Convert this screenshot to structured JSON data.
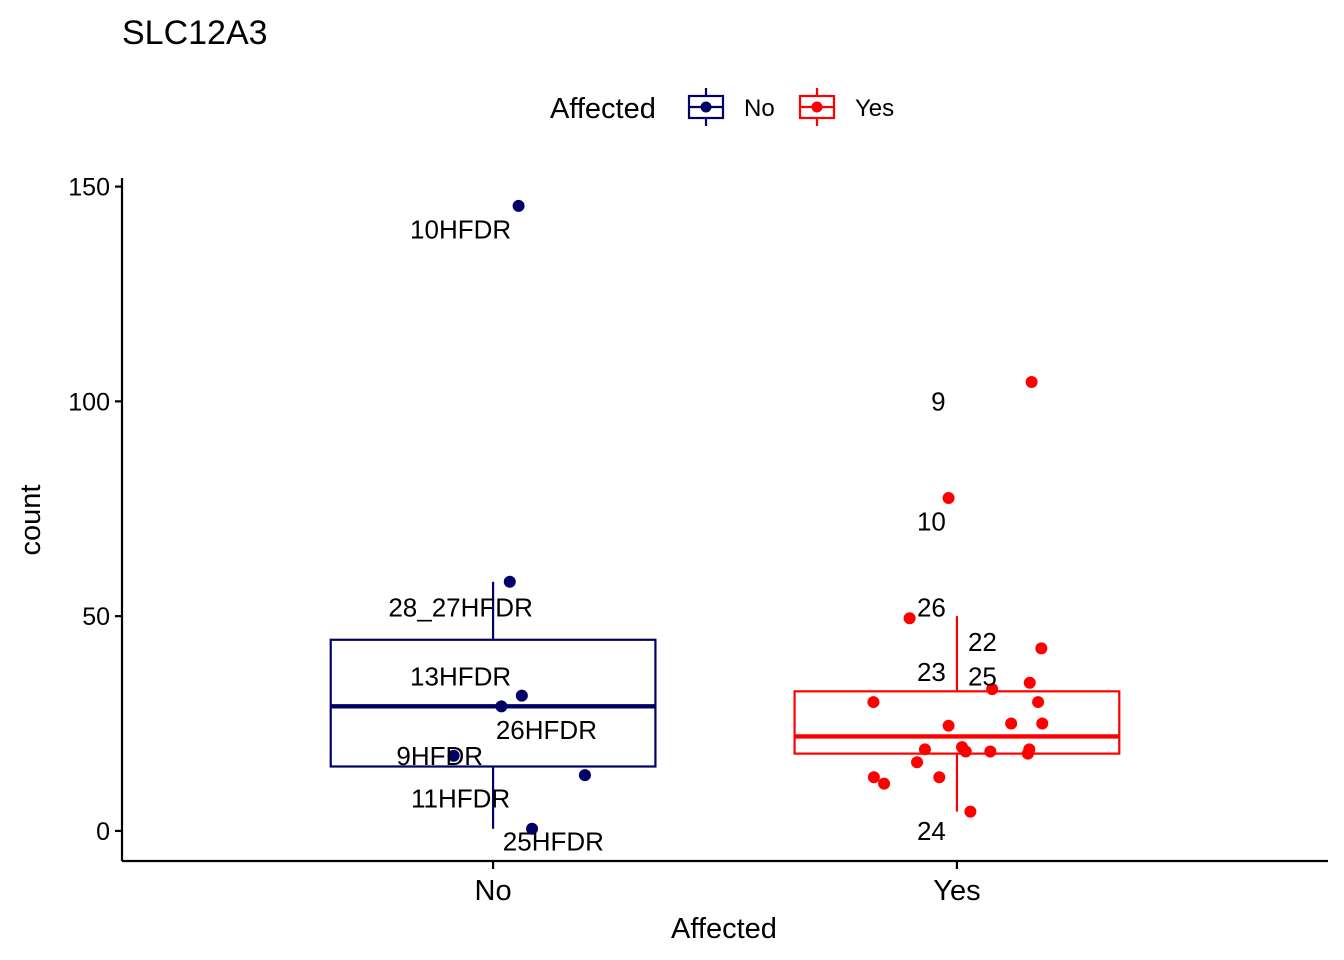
{
  "chart_data": {
    "type": "boxplot",
    "title": "SLC12A3",
    "xlabel": "Affected",
    "ylabel": "count",
    "ylim": [
      -7,
      152
    ],
    "yticks": [
      0,
      50,
      100,
      150
    ],
    "categories": [
      "No",
      "Yes"
    ],
    "legend": {
      "title": "Affected",
      "position": "top",
      "entries": [
        {
          "label": "No",
          "color": "#000066"
        },
        {
          "label": "Yes",
          "color": "#ff0000"
        }
      ]
    },
    "series": [
      {
        "name": "No",
        "color": "#000066",
        "box": {
          "q1": 15,
          "median": 29,
          "q3": 44.5,
          "whisker_low": 0.5,
          "whisker_high": 58
        },
        "points": [
          {
            "jitter": 0.055,
            "y": 145.5
          },
          {
            "jitter": 0.036,
            "y": 58
          },
          {
            "jitter": 0.062,
            "y": 31.5
          },
          {
            "jitter": 0.018,
            "y": 29
          },
          {
            "jitter": -0.085,
            "y": 17.5
          },
          {
            "jitter": 0.198,
            "y": 13
          },
          {
            "jitter": 0.084,
            "y": 0.5
          }
        ],
        "labels": [
          {
            "text": "10HFDR",
            "x_offset": -0.07,
            "y": 140
          },
          {
            "text": "28_27HFDR",
            "x_offset": -0.07,
            "y": 52
          },
          {
            "text": "13HFDR",
            "x_offset": -0.07,
            "y": 36
          },
          {
            "text": "26HFDR",
            "x_offset": 0.115,
            "y": 23.5
          },
          {
            "text": "9HFDR",
            "x_offset": -0.115,
            "y": 17.5
          },
          {
            "text": "11HFDR",
            "x_offset": -0.07,
            "y": 7.5
          },
          {
            "text": "25HFDR",
            "x_offset": 0.13,
            "y": -2.5
          }
        ]
      },
      {
        "name": "Yes",
        "color": "#ff0000",
        "box": {
          "q1": 18,
          "median": 22,
          "q3": 32.5,
          "whisker_low": 4.5,
          "whisker_high": 50
        },
        "points": [
          {
            "jitter": 0.161,
            "y": 104.5
          },
          {
            "jitter": -0.018,
            "y": 77.5
          },
          {
            "jitter": -0.102,
            "y": 49.5
          },
          {
            "jitter": 0.182,
            "y": 42.5
          },
          {
            "jitter": 0.157,
            "y": 34.5
          },
          {
            "jitter": 0.076,
            "y": 33
          },
          {
            "jitter": 0.175,
            "y": 30
          },
          {
            "jitter": -0.18,
            "y": 30
          },
          {
            "jitter": 0.184,
            "y": 25
          },
          {
            "jitter": 0.117,
            "y": 25
          },
          {
            "jitter": -0.018,
            "y": 24.5
          },
          {
            "jitter": 0.011,
            "y": 19.5
          },
          {
            "jitter": -0.069,
            "y": 19
          },
          {
            "jitter": 0.156,
            "y": 19
          },
          {
            "jitter": 0.019,
            "y": 18.5
          },
          {
            "jitter": 0.072,
            "y": 18.5
          },
          {
            "jitter": 0.153,
            "y": 18
          },
          {
            "jitter": -0.086,
            "y": 16
          },
          {
            "jitter": -0.179,
            "y": 12.5
          },
          {
            "jitter": -0.038,
            "y": 12.5
          },
          {
            "jitter": -0.157,
            "y": 11
          },
          {
            "jitter": 0.029,
            "y": 4.5
          }
        ],
        "labels": [
          {
            "text": "9",
            "x_offset": -0.04,
            "y": 100
          },
          {
            "text": "10",
            "x_offset": -0.055,
            "y": 72
          },
          {
            "text": "26",
            "x_offset": -0.055,
            "y": 52
          },
          {
            "text": "22",
            "x_offset": 0.055,
            "y": 44
          },
          {
            "text": "23",
            "x_offset": -0.055,
            "y": 37
          },
          {
            "text": "25",
            "x_offset": 0.055,
            "y": 36
          },
          {
            "text": "24",
            "x_offset": -0.055,
            "y": 0
          }
        ]
      }
    ]
  }
}
